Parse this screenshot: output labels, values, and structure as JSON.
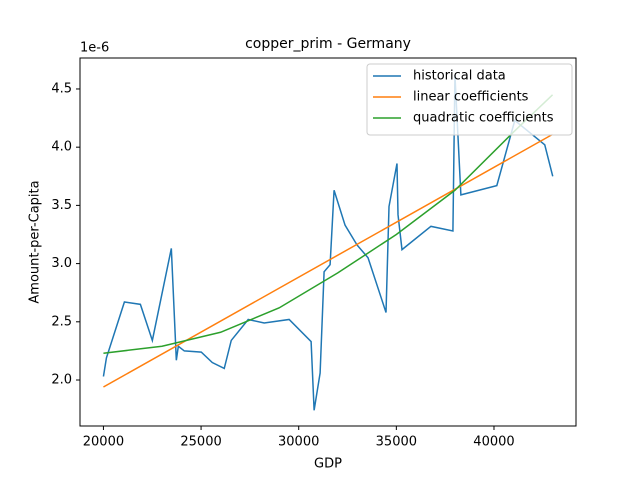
{
  "chart_data": {
    "type": "line",
    "title": "copper_prim - Germany",
    "x_label": "GDP",
    "y_label": "Amount-per-Capita",
    "y_offset_label": "1e-6",
    "xlim": [
      18800,
      44200
    ],
    "ylim": [
      1.605,
      4.766
    ],
    "xticks": [
      20000,
      25000,
      30000,
      35000,
      40000
    ],
    "yticks": [
      {
        "value": 2,
        "label": "2.0"
      },
      {
        "value": 2.5,
        "label": "2.5"
      },
      {
        "value": 3,
        "label": "3.0"
      },
      {
        "value": 3.5,
        "label": "3.5"
      },
      {
        "value": 4,
        "label": "4.0"
      },
      {
        "value": 4.5,
        "label": "4.5"
      }
    ],
    "legend": "upper right",
    "series": [
      {
        "name": "historical data",
        "color": "#1f77b4",
        "x": [
          20000,
          20153,
          21074,
          21892,
          22505,
          23477,
          23733,
          23835,
          24141,
          25010,
          25573,
          26187,
          26545,
          27414,
          28232,
          29510,
          30635,
          30789,
          31096,
          31300,
          31607,
          31811,
          32374,
          32987,
          33550,
          34471,
          34624,
          35033,
          35085,
          35289,
          36772,
          37897,
          38000,
          38305,
          40145,
          41066,
          42600,
          43009
        ],
        "values": [
          2.03,
          2.19,
          2.67,
          2.65,
          2.34,
          3.13,
          2.17,
          2.29,
          2.25,
          2.24,
          2.15,
          2.1,
          2.34,
          2.52,
          2.49,
          2.52,
          2.33,
          1.74,
          2.06,
          2.93,
          2.99,
          3.63,
          3.33,
          3.16,
          3.05,
          2.58,
          3.49,
          3.86,
          3.42,
          3.12,
          3.32,
          3.28,
          4.62,
          3.59,
          3.67,
          4.23,
          4.02,
          3.75
        ]
      },
      {
        "name": "linear coefficients",
        "color": "#ff7f0e",
        "x": [
          20000,
          43000
        ],
        "values": [
          1.94,
          4.11
        ]
      },
      {
        "name": "quadratic coefficients",
        "color": "#2ca02c",
        "x": [
          20000,
          23000,
          26000,
          29000,
          32000,
          35000,
          38000,
          41000,
          43000
        ],
        "values": [
          2.23,
          2.29,
          2.41,
          2.62,
          2.92,
          3.25,
          3.63,
          4.13,
          4.45
        ]
      }
    ]
  }
}
